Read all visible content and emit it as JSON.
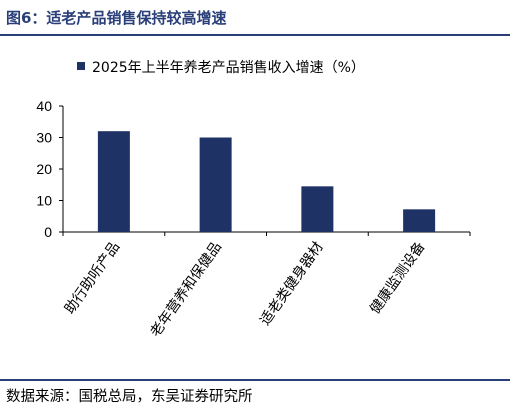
{
  "figure": {
    "title": "图6：适老产品销售保持较高增速",
    "source": "数据来源：国税总局，东吴证券研究所"
  },
  "chart_data": {
    "type": "bar",
    "title": "",
    "categories": [
      "助行助听产品",
      "老年营养和保健品",
      "适老类健身器材",
      "健康监测设备"
    ],
    "series": [
      {
        "name": "2025年上半年养老产品销售收入增速（%）",
        "values": [
          32,
          30,
          14.5,
          7.2
        ]
      }
    ],
    "xlabel": "",
    "ylabel": "",
    "ylim": [
      0,
      40
    ],
    "yticks": [
      0,
      10,
      20,
      30,
      40
    ],
    "legend_position": "top",
    "grid": false,
    "colors": {
      "bar": "#1f3266",
      "title": "#2a3f7a"
    }
  }
}
